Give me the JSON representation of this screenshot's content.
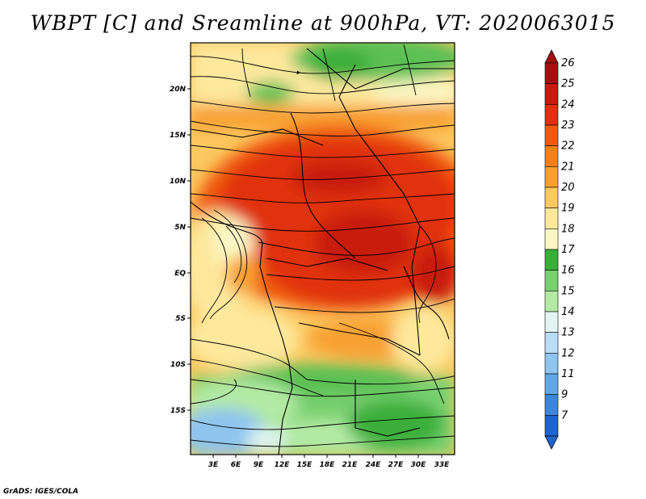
{
  "title": "WBPT [C] and Sreamline at 900hPa, VT: 2020063015",
  "credit": "GrADS: IGES/COLA",
  "lat_labels": [
    "20N",
    "15N",
    "10N",
    "5N",
    "EQ",
    "5S",
    "10S",
    "15S"
  ],
  "lon_labels": [
    "3E",
    "6E",
    "9E",
    "12E",
    "15E",
    "18E",
    "21E",
    "24E",
    "27E",
    "30E",
    "33E"
  ],
  "colorbar": {
    "labels": [
      "26",
      "25",
      "24",
      "23",
      "22",
      "21",
      "20",
      "19",
      "18",
      "17",
      "16",
      "15",
      "14",
      "13",
      "12",
      "11",
      "9",
      "7"
    ],
    "colors": [
      "#a50f0f",
      "#c81a0f",
      "#e0300f",
      "#f05a10",
      "#f5801a",
      "#f8a030",
      "#fcc860",
      "#fde89c",
      "#fbf7c4",
      "#3aae3a",
      "#78d070",
      "#b4eaa4",
      "#e2f5f3",
      "#b8ddf4",
      "#8ec4ee",
      "#62a6e6",
      "#3c86dc",
      "#1e64d0"
    ]
  },
  "map": {
    "variable": "WBPT",
    "units": "C",
    "level": "900hPa",
    "overlay": "streamlines"
  }
}
